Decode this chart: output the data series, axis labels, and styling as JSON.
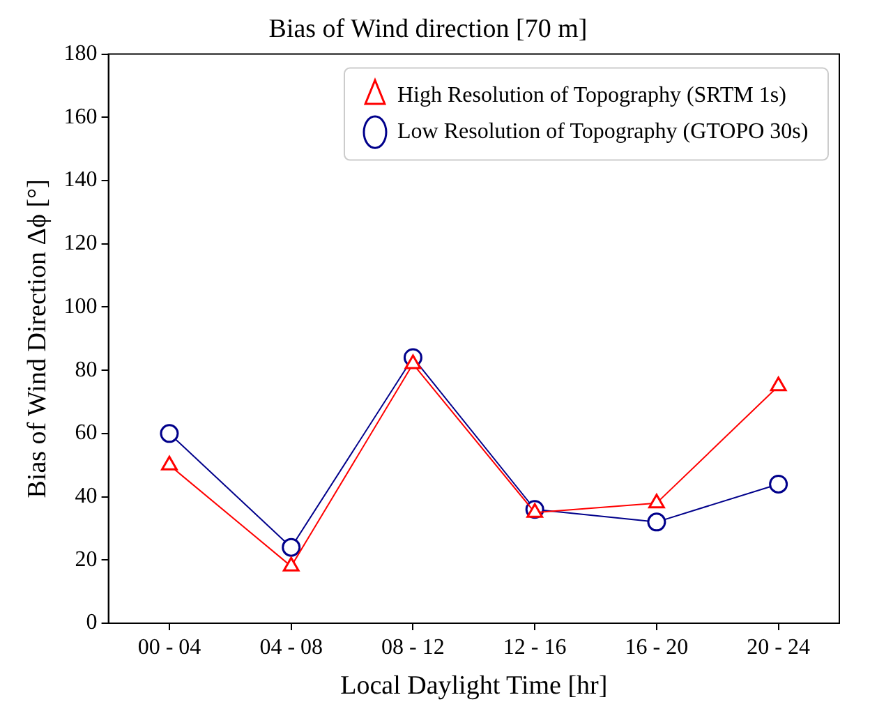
{
  "chart_data": {
    "type": "line",
    "title": "Bias of Wind direction [70 m]",
    "xlabel": "Local Daylight Time [hr]",
    "ylabel": "Bias of Wind Direction Δϕ [°]",
    "categories": [
      "00 - 04",
      "04 - 08",
      "08 - 12",
      "12 - 16",
      "16 - 20",
      "20 - 24"
    ],
    "series": [
      {
        "name": "Low Resolution of Topography (GTOPO 30s)",
        "color": "#00008b",
        "marker": "circle",
        "values": [
          60,
          24,
          84,
          36,
          32,
          44
        ]
      },
      {
        "name": "High Resolution of Topography (SRTM 1s)",
        "color": "#ff0000",
        "marker": "triangle",
        "values": [
          50,
          18,
          82,
          35,
          38,
          75
        ]
      }
    ],
    "ylim": [
      0,
      180
    ],
    "yticks": [
      0,
      20,
      40,
      60,
      80,
      100,
      120,
      140,
      160,
      180
    ],
    "grid": false,
    "legend": "top right",
    "line_style": "solid"
  }
}
